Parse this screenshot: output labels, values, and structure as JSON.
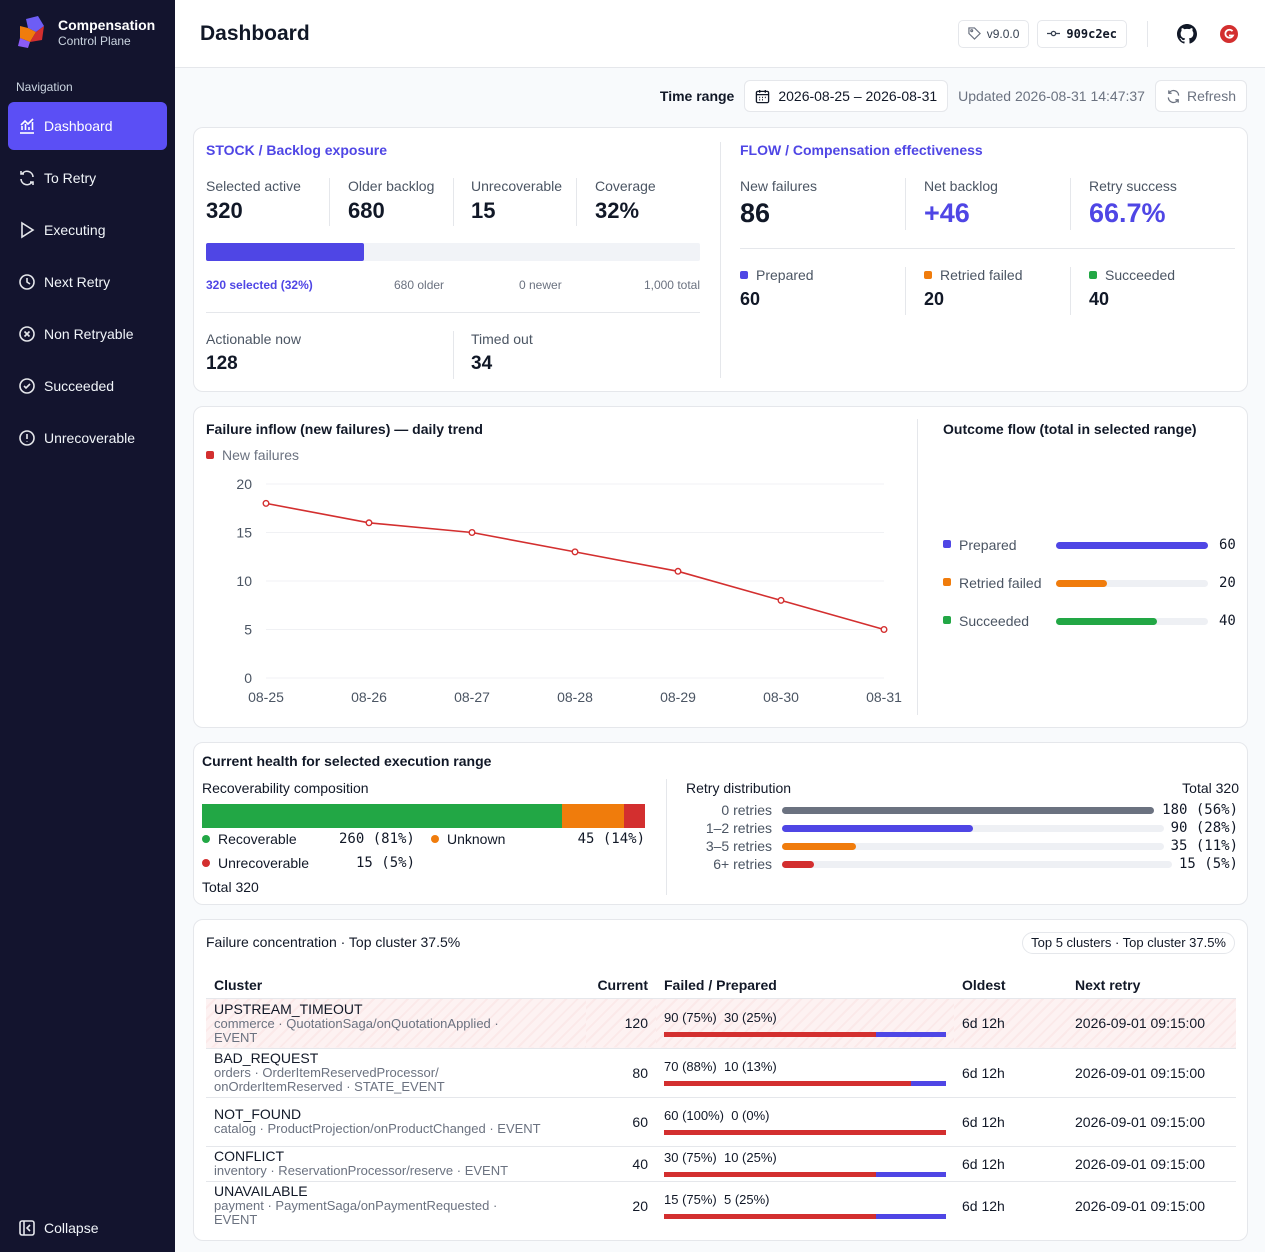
{
  "brand": {
    "title": "Compensation",
    "subtitle": "Control Plane"
  },
  "nav": {
    "heading": "Navigation",
    "items": [
      {
        "label": "Dashboard",
        "icon": "chart-icon",
        "active": true
      },
      {
        "label": "To Retry",
        "icon": "refresh-icon"
      },
      {
        "label": "Executing",
        "icon": "play-icon"
      },
      {
        "label": "Next Retry",
        "icon": "clock-icon"
      },
      {
        "label": "Non Retryable",
        "icon": "x-circle-icon"
      },
      {
        "label": "Succeeded",
        "icon": "check-circle-icon"
      },
      {
        "label": "Unrecoverable",
        "icon": "alert-circle-icon"
      }
    ],
    "collapse": "Collapse"
  },
  "header": {
    "title": "Dashboard",
    "version": "v9.0.0",
    "commit": "909c2ec"
  },
  "timebar": {
    "label": "Time range",
    "range": "2026-08-25 – 2026-08-31",
    "updated": "Updated 2026-08-31 14:47:37",
    "refresh": "Refresh"
  },
  "stock": {
    "title": "STOCK / Backlog exposure",
    "stats": [
      {
        "label": "Selected active",
        "value": "320"
      },
      {
        "label": "Older backlog",
        "value": "680"
      },
      {
        "label": "Unrecoverable",
        "value": "15"
      },
      {
        "label": "Coverage",
        "value": "32%"
      }
    ],
    "coverage_fraction": 0.32,
    "bar_labels": {
      "selected": "320 selected (32%)",
      "older": "680 older",
      "newer": "0 newer",
      "total": "1,000 total"
    },
    "bottom": [
      {
        "label": "Actionable now",
        "value": "128"
      },
      {
        "label": "Timed out",
        "value": "34"
      }
    ]
  },
  "flow": {
    "title": "FLOW / Compensation effectiveness",
    "stats": [
      {
        "label": "New failures",
        "value": "86"
      },
      {
        "label": "Net backlog",
        "value": "+46"
      },
      {
        "label": "Retry success",
        "value": "66.7%"
      }
    ],
    "breakdown": [
      {
        "label": "Prepared",
        "value": "60",
        "color": "#4f46e5"
      },
      {
        "label": "Retried failed",
        "value": "20",
        "color": "#f07c0c"
      },
      {
        "label": "Succeeded",
        "value": "40",
        "color": "#22a745"
      }
    ]
  },
  "chart_data": {
    "type": "line",
    "title": "Failure inflow (new failures) — daily trend",
    "x": [
      "08-25",
      "08-26",
      "08-27",
      "08-28",
      "08-29",
      "08-30",
      "08-31"
    ],
    "series": [
      {
        "name": "New failures",
        "values": [
          18,
          16,
          15,
          13,
          11,
          8,
          5
        ],
        "color": "#d32f2f"
      }
    ],
    "ylim": [
      0,
      20
    ],
    "yticks": [
      "0",
      "5",
      "10",
      "15",
      "20"
    ],
    "grid": true,
    "legend": "top-left"
  },
  "outcome": {
    "title": "Outcome flow (total in selected range)",
    "max": 60,
    "rows": [
      {
        "label": "Prepared",
        "value": 60,
        "display": "60",
        "color": "#4f46e5"
      },
      {
        "label": "Retried failed",
        "value": 20,
        "display": "20",
        "color": "#f07c0c"
      },
      {
        "label": "Succeeded",
        "value": 40,
        "display": "40",
        "color": "#22a745"
      }
    ]
  },
  "health": {
    "title": "Current health for selected execution range",
    "recov": {
      "title": "Recoverability composition",
      "segments": [
        {
          "label": "Recoverable",
          "value": "260 (81%)",
          "fraction": 0.8125,
          "color": "#22a745"
        },
        {
          "label": "Unknown",
          "value": "45 (14%)",
          "fraction": 0.1406,
          "color": "#f07c0c"
        },
        {
          "label": "Unrecoverable",
          "value": "15 (5%)",
          "fraction": 0.0469,
          "color": "#d32f2f"
        }
      ],
      "total": "Total 320"
    },
    "retry": {
      "title": "Retry distribution",
      "total": "Total 320",
      "rows": [
        {
          "label": "0 retries",
          "value": "180 (56%)",
          "fraction": 1.0,
          "color": "#6b7280"
        },
        {
          "label": "1–2 retries",
          "value": "90 (28%)",
          "fraction": 0.5,
          "color": "#4f46e5"
        },
        {
          "label": "3–5 retries",
          "value": "35 (11%)",
          "fraction": 0.194,
          "color": "#f07c0c"
        },
        {
          "label": "6+ retries",
          "value": "15 (5%)",
          "fraction": 0.083,
          "color": "#d32f2f"
        }
      ]
    }
  },
  "concentration": {
    "title": "Failure concentration · Top cluster 37.5%",
    "badge": "Top 5 clusters · Top cluster 37.5%",
    "columns": [
      "Cluster",
      "Current",
      "Failed / Prepared",
      "Oldest",
      "Next retry"
    ],
    "rows": [
      {
        "name": "UPSTREAM_TIMEOUT",
        "sub": "commerce · QuotationSaga/onQuotationApplied · EVENT",
        "current": "120",
        "failed": "90 (75%)",
        "prepared": "30 (25%)",
        "failed_frac": 0.75,
        "oldest": "6d 12h",
        "next": "2026-09-01 09:15:00",
        "highlight": true
      },
      {
        "name": "BAD_REQUEST",
        "sub": "orders · OrderItemReservedProcessor/ onOrderItemReserved · STATE_EVENT",
        "current": "80",
        "failed": "70 (88%)",
        "prepared": "10 (13%)",
        "failed_frac": 0.875,
        "oldest": "6d 12h",
        "next": "2026-09-01 09:15:00"
      },
      {
        "name": "NOT_FOUND",
        "sub": "catalog · ProductProjection/onProductChanged · EVENT",
        "current": "60",
        "failed": "60 (100%)",
        "prepared": "0 (0%)",
        "failed_frac": 1.0,
        "oldest": "6d 12h",
        "next": "2026-09-01 09:15:00"
      },
      {
        "name": "CONFLICT",
        "sub": "inventory · ReservationProcessor/reserve · EVENT",
        "current": "40",
        "failed": "30 (75%)",
        "prepared": "10 (25%)",
        "failed_frac": 0.75,
        "oldest": "6d 12h",
        "next": "2026-09-01 09:15:00"
      },
      {
        "name": "UNAVAILABLE",
        "sub": "payment · PaymentSaga/onPaymentRequested · EVENT",
        "current": "20",
        "failed": "15 (75%)",
        "prepared": "5 (25%)",
        "failed_frac": 0.75,
        "oldest": "6d 12h",
        "next": "2026-09-01 09:15:00"
      }
    ]
  }
}
